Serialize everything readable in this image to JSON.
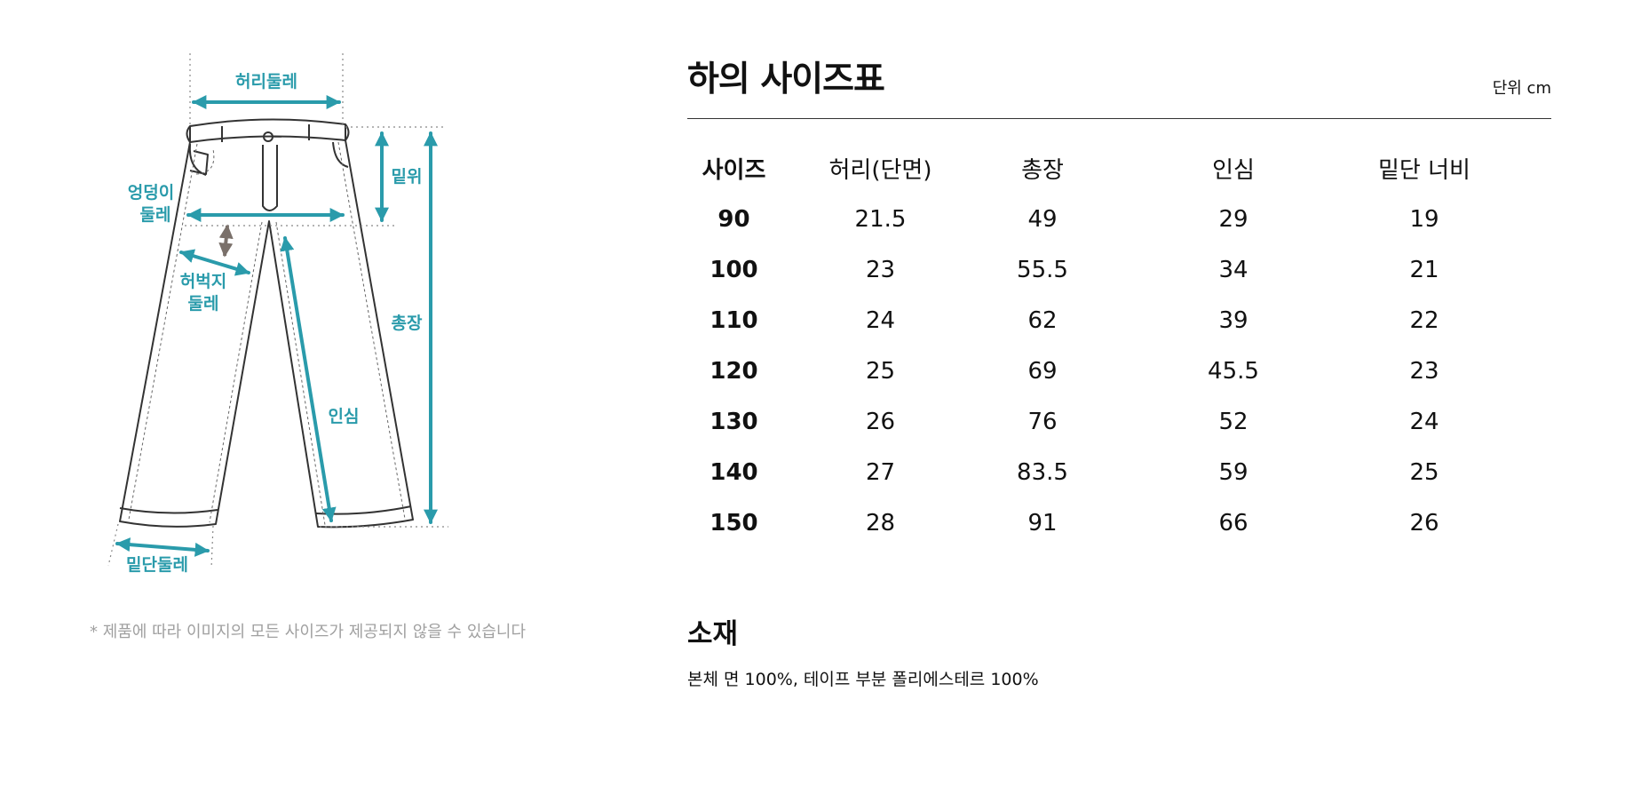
{
  "diagram": {
    "labels": {
      "waist": "허리둘레",
      "rise": "밑위",
      "hip_line1": "엉덩이",
      "hip_line2": "둘레",
      "thigh_line1": "허벅지",
      "thigh_line2": "둘레",
      "length": "총장",
      "inseam": "인심",
      "hem": "밑단둘레"
    },
    "accent_color": "#2a9bab",
    "thigh_arrow_color": "#7a706a"
  },
  "note": "* 제품에 따라 이미지의 모든 사이즈가 제공되지 않을 수 있습니다",
  "size_chart": {
    "title": "하의 사이즈표",
    "unit": "단위 cm",
    "headers": {
      "size": "사이즈",
      "waist": "허리(단면)",
      "length": "총장",
      "inseam": "인심",
      "hem": "밑단 너비"
    },
    "rows": [
      {
        "size": "90",
        "waist": "21.5",
        "length": "49",
        "inseam": "29",
        "hem": "19"
      },
      {
        "size": "100",
        "waist": "23",
        "length": "55.5",
        "inseam": "34",
        "hem": "21"
      },
      {
        "size": "110",
        "waist": "24",
        "length": "62",
        "inseam": "39",
        "hem": "22"
      },
      {
        "size": "120",
        "waist": "25",
        "length": "69",
        "inseam": "45.5",
        "hem": "23"
      },
      {
        "size": "130",
        "waist": "26",
        "length": "76",
        "inseam": "52",
        "hem": "24"
      },
      {
        "size": "140",
        "waist": "27",
        "length": "83.5",
        "inseam": "59",
        "hem": "25"
      },
      {
        "size": "150",
        "waist": "28",
        "length": "91",
        "inseam": "66",
        "hem": "26"
      }
    ]
  },
  "material": {
    "title": "소재",
    "text": "본체 면 100%, 테이프 부분 폴리에스테르 100%"
  }
}
